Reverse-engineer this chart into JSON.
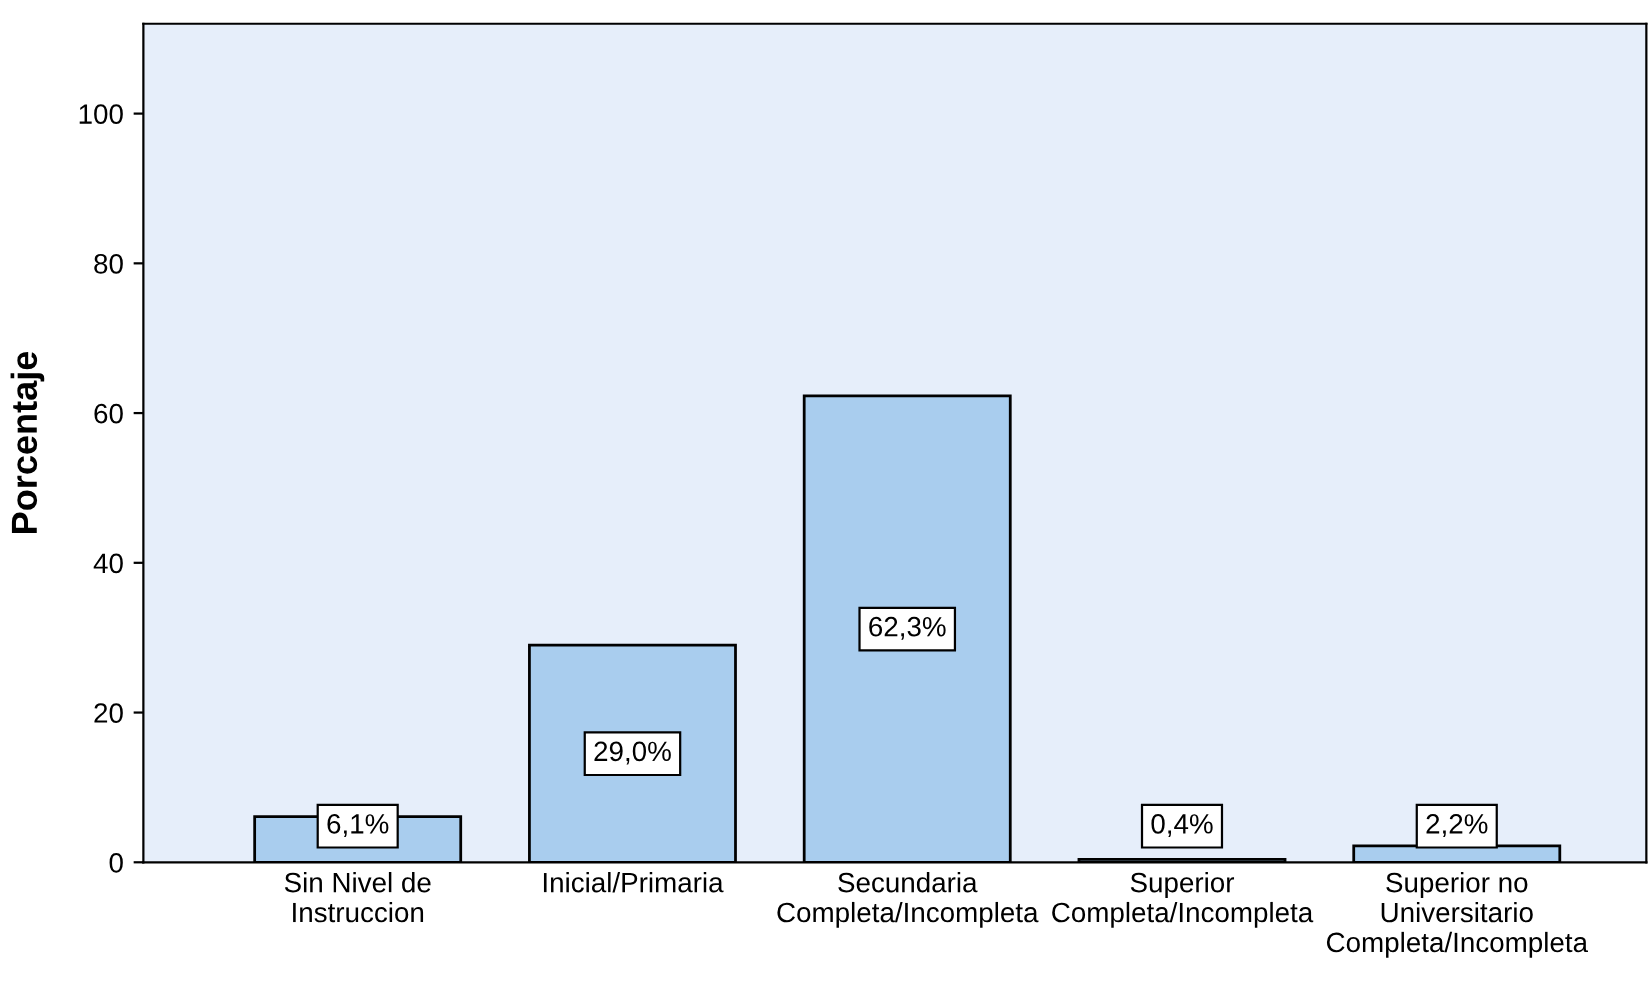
{
  "chart_data": {
    "type": "bar",
    "ylabel": "Porcentaje",
    "categories": [
      "Sin Nivel de\nInstruccion",
      "Inicial/Primaria",
      "Secundaria\nCompleta/Incompleta",
      "Superior\nCompleta/Incompleta",
      "Superior no\nUniversitario\nCompleta/Incompleta"
    ],
    "values": [
      6.1,
      29.0,
      62.3,
      0.4,
      2.2
    ],
    "value_labels": [
      "6,1%",
      "29,0%",
      "62,3%",
      "0,4%",
      "2,2%"
    ],
    "color": "#a9cdee",
    "ylim": [
      0,
      112
    ],
    "yticks": [
      0,
      20,
      40,
      60,
      80,
      100
    ],
    "grid": false
  }
}
